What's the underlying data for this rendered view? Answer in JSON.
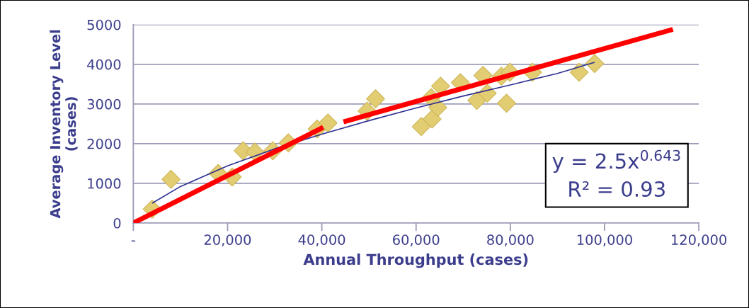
{
  "chart_data": {
    "type": "scatter",
    "xlabel": "Annual Throughput (cases)",
    "ylabel": "Average Inventory Level\n(cases)",
    "xlim": [
      0,
      120000
    ],
    "ylim": [
      0,
      5000
    ],
    "xticks": [
      {
        "value": 0,
        "label": "-"
      },
      {
        "value": 20000,
        "label": "20,000"
      },
      {
        "value": 40000,
        "label": "40,000"
      },
      {
        "value": 60000,
        "label": "60,000"
      },
      {
        "value": 80000,
        "label": "80,000"
      },
      {
        "value": 100000,
        "label": "100,000"
      },
      {
        "value": 120000,
        "label": "120,000"
      }
    ],
    "yticks": [
      0,
      1000,
      2000,
      3000,
      4000,
      5000
    ],
    "grid": "y",
    "legend": false,
    "marker": "diamond",
    "annotations": [
      "y = 2.5x$^{0.643}$\nR² = 0.93"
    ],
    "series": [
      {
        "color": "#e3cd72",
        "x": [
          4000,
          8000,
          18000,
          21000,
          23300,
          25800,
          29600,
          32900,
          39000,
          41300,
          49600,
          51400,
          61100,
          63200,
          63400,
          64600,
          65200,
          69400,
          72900,
          74200,
          75100,
          78100,
          79200,
          79900,
          84700,
          94600,
          97900
        ],
        "values": [
          350,
          1100,
          1250,
          1160,
          1820,
          1790,
          1820,
          2020,
          2370,
          2520,
          2820,
          3130,
          2430,
          3160,
          2620,
          2910,
          3450,
          3540,
          3090,
          3720,
          3270,
          3700,
          3020,
          3800,
          3800,
          3800,
          4020
        ]
      },
      {
        "type": "line",
        "color": "#2e3192",
        "marker": "none",
        "x": [
          4000,
          10000,
          20000,
          30000,
          40000,
          50000,
          60000,
          70000,
          80000,
          90000,
          97900
        ],
        "values": [
          500,
          920,
          1440,
          1870,
          2240,
          2580,
          2900,
          3200,
          3480,
          3770,
          4050
        ]
      },
      {
        "type": "line",
        "color": "#ff0000",
        "marker": "none",
        "x": [
          0,
          40300
        ],
        "values": [
          0,
          2410
        ]
      },
      {
        "type": "line",
        "color": "#ff0000",
        "marker": "none",
        "x": [
          44600,
          114500
        ],
        "values": [
          2550,
          4880
        ]
      }
    ]
  }
}
